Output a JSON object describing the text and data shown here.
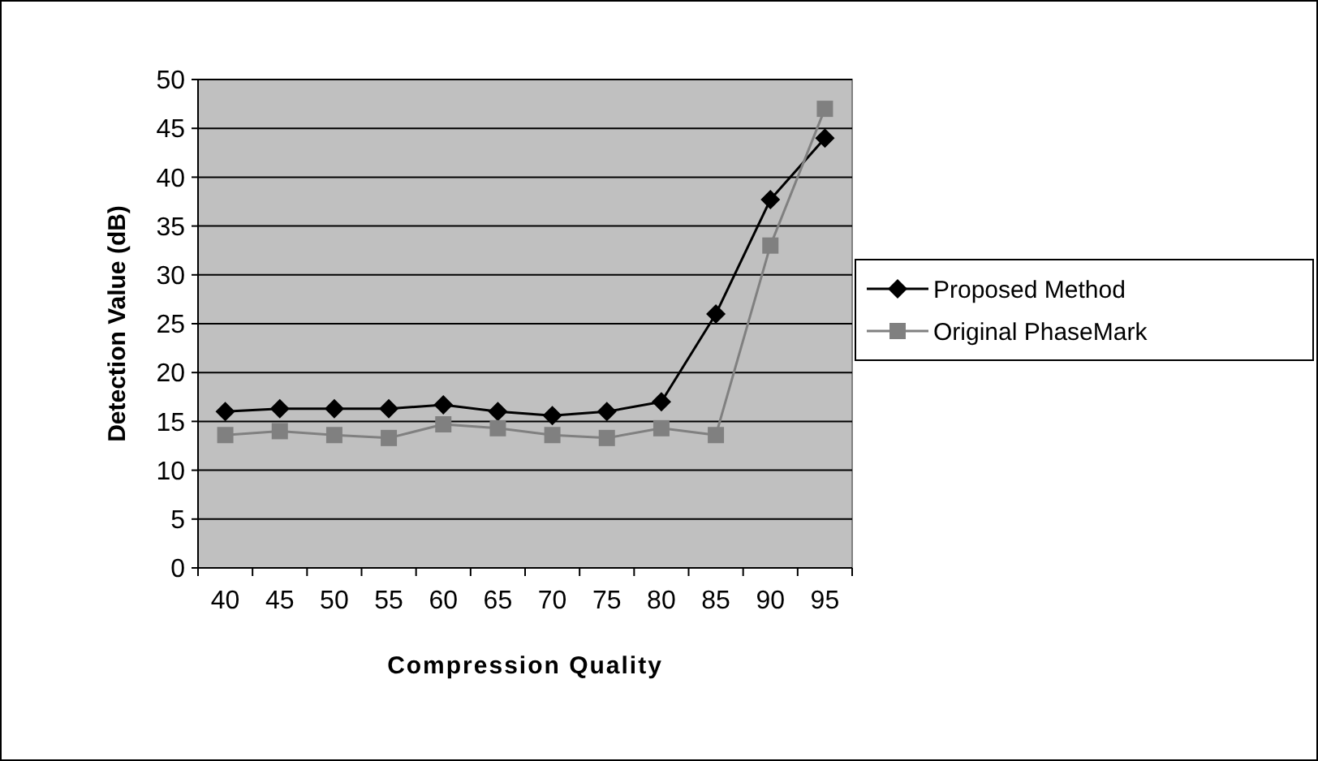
{
  "chart_data": {
    "type": "line",
    "xlabel": "Compression Quality",
    "ylabel": "Detection Value (dB)",
    "categories": [
      "40",
      "45",
      "50",
      "55",
      "60",
      "65",
      "70",
      "75",
      "80",
      "85",
      "90",
      "95"
    ],
    "series": [
      {
        "name": "Proposed Method",
        "color": "#000000",
        "marker": "diamond",
        "values": [
          16,
          16.3,
          16.3,
          16.3,
          16.7,
          16,
          15.6,
          16,
          17,
          26,
          37.7,
          44
        ]
      },
      {
        "name": "Original PhaseMark",
        "color": "#808080",
        "marker": "square",
        "values": [
          13.6,
          14,
          13.6,
          13.3,
          14.7,
          14.3,
          13.6,
          13.3,
          14.3,
          13.6,
          33,
          47
        ]
      }
    ],
    "ylim": [
      0,
      50
    ],
    "yticks": [
      0,
      5,
      10,
      15,
      20,
      25,
      30,
      35,
      40,
      45,
      50
    ],
    "grid": "y",
    "legend": "right"
  }
}
